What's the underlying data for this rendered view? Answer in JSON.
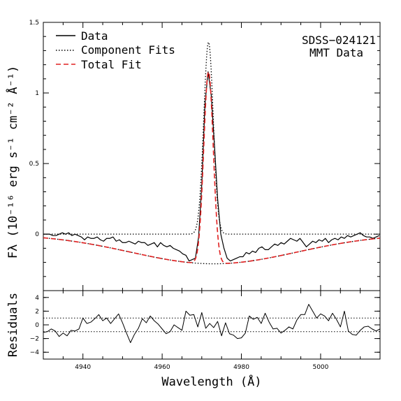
{
  "chart_data": [
    {
      "type": "line",
      "panel": "main",
      "xlim": [
        4930,
        5015
      ],
      "ylim": [
        -0.4,
        1.5
      ],
      "ylabel": "Fλ (10⁻¹⁶ erg s⁻¹ cm⁻² Å⁻¹)",
      "y_ticks": [
        {
          "value": 0,
          "label": "0"
        },
        {
          "value": 0.5,
          "label": "0.5"
        },
        {
          "value": 1,
          "label": "1"
        },
        {
          "value": 1.5,
          "label": "1.5"
        }
      ],
      "annotation": [
        "SDSS−024121",
        "MMT Data"
      ],
      "legend": [
        {
          "label": "Data",
          "style": "solid",
          "color": "#000000"
        },
        {
          "label": "Component Fits",
          "style": "dotted",
          "color": "#000000"
        },
        {
          "label": "Total Fit",
          "style": "dashed",
          "color": "#e02020"
        }
      ],
      "legend_position": "top-left",
      "series": [
        {
          "name": "Data",
          "style": "solid",
          "color": "#000000",
          "x": [
            4930.0,
            4930.8,
            4931.6,
            4932.4,
            4933.2,
            4934.0,
            4934.8,
            4935.6,
            4936.4,
            4937.2,
            4938.0,
            4938.8,
            4939.6,
            4940.4,
            4941.2,
            4942.0,
            4942.8,
            4943.6,
            4944.4,
            4945.2,
            4946.0,
            4946.8,
            4947.6,
            4948.4,
            4949.2,
            4950.0,
            4950.8,
            4951.6,
            4952.4,
            4953.2,
            4954.0,
            4954.8,
            4955.6,
            4956.4,
            4957.2,
            4958.0,
            4958.8,
            4959.6,
            4960.4,
            4961.2,
            4962.0,
            4962.8,
            4963.6,
            4964.4,
            4965.2,
            4966.0,
            4966.8,
            4967.6,
            4968.4,
            4969.2,
            4970.0,
            4970.8,
            4971.6,
            4972.4,
            4973.2,
            4974.0,
            4974.8,
            4975.6,
            4976.4,
            4977.2,
            4978.0,
            4978.8,
            4979.6,
            4980.4,
            4981.2,
            4982.0,
            4982.8,
            4983.6,
            4984.4,
            4985.2,
            4986.0,
            4986.8,
            4987.6,
            4988.4,
            4989.2,
            4990.0,
            4990.8,
            4991.6,
            4992.4,
            4993.2,
            4994.0,
            4994.8,
            4995.6,
            4996.4,
            4997.2,
            4998.0,
            4998.8,
            4999.6,
            5000.4,
            5001.2,
            5002.0,
            5002.8,
            5003.6,
            5004.4,
            5005.2,
            5006.0,
            5006.8,
            5007.6,
            5008.4,
            5009.2,
            5010.0,
            5010.8,
            5011.6,
            5012.4,
            5013.2,
            5014.0,
            5014.8
          ],
          "y": [
            0.0,
            0.0,
            0.0,
            -0.01,
            -0.01,
            0.0,
            0.01,
            0.0,
            0.01,
            -0.01,
            0.0,
            -0.01,
            -0.02,
            -0.04,
            -0.02,
            -0.03,
            -0.03,
            -0.02,
            -0.04,
            -0.05,
            -0.03,
            -0.03,
            -0.02,
            -0.05,
            -0.04,
            -0.06,
            -0.06,
            -0.05,
            -0.06,
            -0.07,
            -0.05,
            -0.06,
            -0.06,
            -0.08,
            -0.07,
            -0.06,
            -0.09,
            -0.06,
            -0.08,
            -0.09,
            -0.08,
            -0.1,
            -0.11,
            -0.12,
            -0.14,
            -0.15,
            -0.19,
            -0.18,
            -0.17,
            -0.02,
            0.35,
            0.92,
            1.15,
            0.98,
            0.63,
            0.25,
            0.0,
            -0.1,
            -0.17,
            -0.19,
            -0.18,
            -0.17,
            -0.16,
            -0.16,
            -0.13,
            -0.14,
            -0.12,
            -0.13,
            -0.1,
            -0.09,
            -0.11,
            -0.11,
            -0.09,
            -0.07,
            -0.08,
            -0.06,
            -0.07,
            -0.05,
            -0.03,
            -0.04,
            -0.05,
            -0.03,
            -0.06,
            -0.09,
            -0.07,
            -0.05,
            -0.06,
            -0.04,
            -0.05,
            -0.03,
            -0.06,
            -0.04,
            -0.03,
            -0.04,
            -0.02,
            -0.03,
            -0.01,
            -0.02,
            -0.01,
            0.0,
            0.01,
            -0.01,
            -0.02,
            -0.02,
            -0.03,
            -0.02,
            -0.01
          ]
        },
        {
          "name": "Component Fits (narrow)",
          "style": "dotted",
          "color": "#000000",
          "model": {
            "type": "gaussian",
            "amplitude": 1.36,
            "center": 4971.7,
            "sigma": 1.2
          },
          "x_range": [
            4930,
            5015
          ]
        },
        {
          "name": "Component Fits (broad)",
          "style": "dotted",
          "color": "#000000",
          "model": {
            "type": "gaussian",
            "amplitude": -0.21,
            "center": 4973.0,
            "sigma": 21.0
          },
          "x_range": [
            4930,
            5015
          ]
        },
        {
          "name": "Total Fit",
          "style": "dashed",
          "color": "#e02020",
          "model": {
            "type": "sum",
            "components": [
              "Component Fits (narrow)",
              "Component Fits (broad)"
            ]
          },
          "x_range": [
            4930,
            5015
          ]
        }
      ]
    },
    {
      "type": "line",
      "panel": "residuals",
      "xlim": [
        4930,
        5015
      ],
      "ylim": [
        -5,
        5
      ],
      "xlabel": "Wavelength (Å)",
      "ylabel": "Residuals",
      "x_ticks": [
        {
          "value": 4940,
          "label": "4940"
        },
        {
          "value": 4960,
          "label": "4960"
        },
        {
          "value": 4980,
          "label": "4980"
        },
        {
          "value": 5000,
          "label": "5000"
        }
      ],
      "y_ticks": [
        {
          "value": -4,
          "label": "−4"
        },
        {
          "value": -2,
          "label": "−2"
        },
        {
          "value": 0,
          "label": "0"
        },
        {
          "value": 2,
          "label": "2"
        },
        {
          "value": 4,
          "label": "4"
        }
      ],
      "reference_lines": [
        1,
        -1
      ],
      "series": [
        {
          "name": "Residuals",
          "style": "solid",
          "color": "#000000",
          "x": [
            4930.0,
            4931.0,
            4932.0,
            4933.0,
            4934.0,
            4935.0,
            4936.0,
            4937.0,
            4938.0,
            4939.0,
            4940.0,
            4941.0,
            4942.0,
            4943.0,
            4944.0,
            4945.0,
            4946.0,
            4947.0,
            4948.0,
            4949.0,
            4950.0,
            4951.0,
            4952.0,
            4953.0,
            4954.0,
            4955.0,
            4956.0,
            4957.0,
            4958.0,
            4959.0,
            4960.0,
            4961.0,
            4962.0,
            4963.0,
            4964.0,
            4965.0,
            4966.0,
            4967.0,
            4968.0,
            4969.0,
            4970.0,
            4971.0,
            4972.0,
            4973.0,
            4974.0,
            4975.0,
            4976.0,
            4977.0,
            4978.0,
            4979.0,
            4980.0,
            4981.0,
            4982.0,
            4983.0,
            4984.0,
            4985.0,
            4986.0,
            4987.0,
            4988.0,
            4989.0,
            4990.0,
            4991.0,
            4992.0,
            4993.0,
            4994.0,
            4995.0,
            4996.0,
            4997.0,
            4998.0,
            4999.0,
            5000.0,
            5001.0,
            5002.0,
            5003.0,
            5004.0,
            5005.0,
            5006.0,
            5007.0,
            5008.0,
            5009.0,
            5010.0,
            5011.0,
            5012.0,
            5013.0,
            5014.0,
            5015.0
          ],
          "y": [
            -1.1,
            -1.0,
            -0.6,
            -0.9,
            -1.7,
            -1.2,
            -1.6,
            -0.8,
            -0.9,
            -0.6,
            1.0,
            0.2,
            0.4,
            0.9,
            1.5,
            0.6,
            1.0,
            0.2,
            0.9,
            1.6,
            0.3,
            -1.2,
            -2.6,
            -1.4,
            -0.5,
            0.9,
            0.3,
            1.3,
            0.6,
            0.1,
            -0.6,
            -1.3,
            -1.0,
            0.0,
            -0.4,
            -0.8,
            2.0,
            1.4,
            1.5,
            -0.3,
            1.8,
            -0.5,
            0.2,
            -0.4,
            0.5,
            -1.6,
            0.3,
            -1.3,
            -1.5,
            -2.0,
            -1.9,
            -1.2,
            1.3,
            0.8,
            1.1,
            0.2,
            1.7,
            0.4,
            -0.6,
            -0.5,
            -1.2,
            -0.8,
            -0.3,
            -0.6,
            0.7,
            1.5,
            1.5,
            3.0,
            2.0,
            1.0,
            1.6,
            1.3,
            0.6,
            1.7,
            0.8,
            -0.3,
            2.0,
            -0.9,
            -1.4,
            -1.5,
            -0.8,
            -0.3,
            -0.2,
            -0.6,
            -0.9,
            -0.6
          ]
        }
      ]
    }
  ]
}
